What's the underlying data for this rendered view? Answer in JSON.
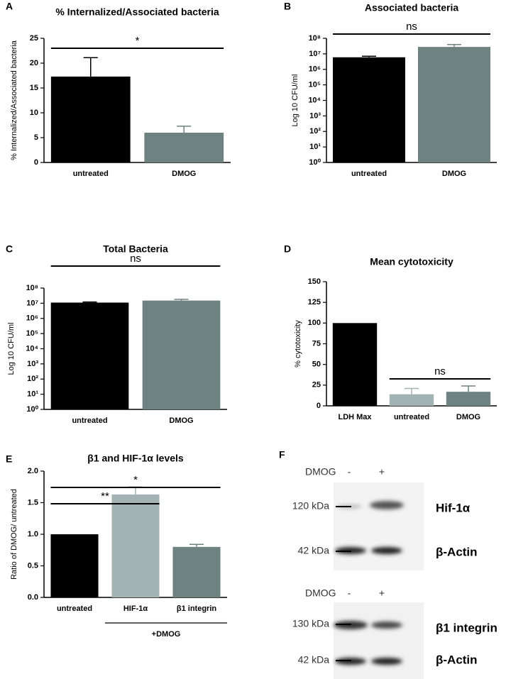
{
  "chart_data": [
    {
      "type": "bar",
      "panel": "A",
      "title": "% Internalized/Associated bacteria",
      "ylabel": "% Internalized/Associated bacteria",
      "categories": [
        "untreated",
        "DMOG"
      ],
      "values": [
        17.3,
        6.0
      ],
      "errors": [
        3.8,
        1.3
      ],
      "colors": [
        "#000000",
        "#6f8282"
      ],
      "ylim": [
        0,
        25
      ],
      "yticks": [
        0,
        5,
        10,
        15,
        20,
        25
      ],
      "log": false,
      "grid": false,
      "annotations": [
        {
          "text": "*",
          "from": 0,
          "to": 1
        }
      ]
    },
    {
      "type": "bar",
      "panel": "B",
      "title": "Associated bacteria",
      "ylabel": "Log 10 CFU/ml",
      "categories": [
        "untreated",
        "DMOG"
      ],
      "values": [
        6000000,
        28000000
      ],
      "errors": [
        1000000,
        12000000
      ],
      "colors": [
        "#000000",
        "#6f8282"
      ],
      "ylim": [
        1,
        100000000
      ],
      "yticks": [
        {
          "value": 1,
          "label": "10⁰"
        },
        {
          "value": 10,
          "label": "10¹"
        },
        {
          "value": 100,
          "label": "10²"
        },
        {
          "value": 1000,
          "label": "10³"
        },
        {
          "value": 10000,
          "label": "10⁴"
        },
        {
          "value": 100000,
          "label": "10⁵"
        },
        {
          "value": 1000000,
          "label": "10⁶"
        },
        {
          "value": 10000000,
          "label": "10⁷"
        },
        {
          "value": 100000000,
          "label": "10⁸"
        }
      ],
      "log": true,
      "grid": false,
      "annotations": [
        {
          "text": "ns",
          "from": 0,
          "to": 1
        }
      ]
    },
    {
      "type": "bar",
      "panel": "C",
      "title": "Total Bacteria",
      "ylabel": "Log 10 CFU/ml",
      "categories": [
        "untreated",
        "DMOG"
      ],
      "values": [
        11000000,
        15000000
      ],
      "errors": [
        1000000,
        3000000
      ],
      "colors": [
        "#000000",
        "#6f8282"
      ],
      "ylim": [
        1,
        100000000
      ],
      "yticks": [
        {
          "value": 1,
          "label": "10⁰"
        },
        {
          "value": 10,
          "label": "10¹"
        },
        {
          "value": 100,
          "label": "10²"
        },
        {
          "value": 1000,
          "label": "10³"
        },
        {
          "value": 10000,
          "label": "10⁴"
        },
        {
          "value": 100000,
          "label": "10⁵"
        },
        {
          "value": 1000000,
          "label": "10⁶"
        },
        {
          "value": 10000000,
          "label": "10⁷"
        },
        {
          "value": 100000000,
          "label": "10⁸"
        }
      ],
      "log": true,
      "grid": false,
      "annotations": [
        {
          "text": "ns",
          "from": 0,
          "to": 1
        }
      ]
    },
    {
      "type": "bar",
      "panel": "D",
      "title": "Mean cytotoxicity",
      "ylabel": "% cytotoxicity",
      "categories": [
        "LDH Max",
        "untreated",
        "DMOG"
      ],
      "values": [
        100,
        14,
        17
      ],
      "errors": [
        0,
        7,
        7
      ],
      "colors": [
        "#000000",
        "#a3b3b3",
        "#6f8282"
      ],
      "ylim": [
        0,
        150
      ],
      "yticks": [
        0,
        25,
        50,
        75,
        100,
        125,
        150
      ],
      "log": false,
      "grid": false,
      "annotations": [
        {
          "text": "ns",
          "from": 1,
          "to": 2
        }
      ]
    },
    {
      "type": "bar",
      "panel": "E",
      "title": "β1 and HIF-1α levels",
      "ylabel": "Ratio of DMOG/ untreated",
      "categories": [
        "untreated",
        "HIF-1α",
        "β1 integrin"
      ],
      "values": [
        1.0,
        1.63,
        0.8
      ],
      "errors": [
        0,
        0.12,
        0.04
      ],
      "colors": [
        "#000000",
        "#a3b3b3",
        "#6f8282"
      ],
      "ylim": [
        0,
        2
      ],
      "yticks": [
        {
          "value": 0,
          "label": "0.0"
        },
        {
          "value": 0.5,
          "label": "0.5"
        },
        {
          "value": 1,
          "label": "1.0"
        },
        {
          "value": 1.5,
          "label": "1.5"
        },
        {
          "value": 2,
          "label": "2.0"
        }
      ],
      "log": false,
      "grid": false,
      "annotations": [
        {
          "text": "**",
          "from": 0,
          "to": 1
        },
        {
          "text": "*",
          "from": 0,
          "to": 2
        }
      ],
      "group_labels": [
        {
          "text": "+DMOG",
          "from": 1,
          "to": 2
        }
      ]
    }
  ],
  "blot": {
    "panel": "F",
    "blocks": [
      {
        "condition": "DMOG",
        "lanes": [
          "-",
          "+"
        ],
        "rows": [
          {
            "marker": "120 kDa",
            "label": "Hif-1α"
          },
          {
            "marker": "42 kDa",
            "label": "β-Actin"
          }
        ]
      },
      {
        "condition": "DMOG",
        "lanes": [
          "-",
          "+"
        ],
        "rows": [
          {
            "marker": "130 kDa",
            "label": "β1 integrin"
          },
          {
            "marker": "42 kDa",
            "label": "β-Actin"
          }
        ]
      }
    ]
  }
}
